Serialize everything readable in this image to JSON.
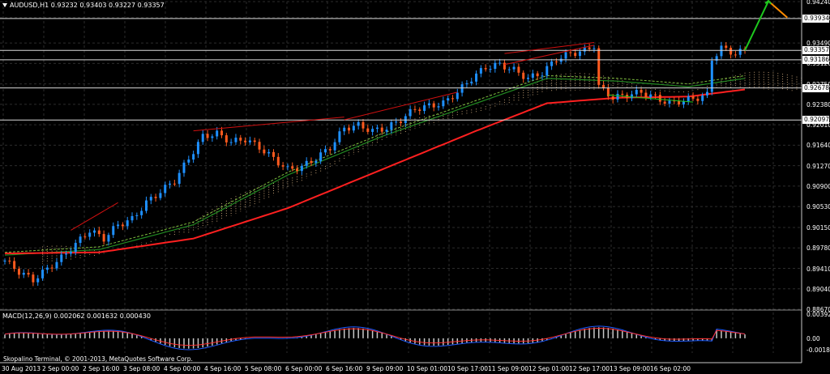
{
  "header": {
    "symbol_line": "AUDUSD,H1  0.93232 0.93403 0.93227 0.93357"
  },
  "macd_header": "MACD(12,26,9) 0.002062 0.001632 0.000430",
  "footer": {
    "copyright": "Skopalino Terminal, © 2001-2013, MetaQuotes Software Corp."
  },
  "colors": {
    "bull": "#1e90ff",
    "bear": "#ff5a1e",
    "ma_fast": "#ff2020",
    "ma_mid": "#228b22",
    "ichimoku": "#deb887",
    "grid": "#2c2c2c",
    "macd_line": "#1e5aff",
    "signal": "#ff3030"
  },
  "chart_data": {
    "type": "candlestick",
    "symbol": "AUDUSD",
    "timeframe": "H1",
    "ohlc_current": {
      "open": 0.93232,
      "high": 0.93403,
      "low": 0.93227,
      "close": 0.93357
    },
    "price_axis": {
      "ticks": [
        "0.94240",
        "0.93950",
        "0.93490",
        "0.93120",
        "0.92750",
        "0.92380",
        "0.92010",
        "0.91640",
        "0.91270",
        "0.90900",
        "0.90530",
        "0.90150",
        "0.89780",
        "0.89410",
        "0.89040",
        "0.88670"
      ],
      "horizontal_levels": [
        "0.93934",
        "0.93357",
        "0.93186",
        "0.92678",
        "0.92097"
      ]
    },
    "time_axis": [
      "30 Aug 2013",
      "2 Sep 00:00",
      "2 Sep 16:00",
      "3 Sep 08:00",
      "4 Sep 00:00",
      "4 Sep 16:00",
      "5 Sep 08:00",
      "6 Sep 00:00",
      "6 Sep 16:00",
      "9 Sep 09:00",
      "10 Sep 01:00",
      "10 Sep 17:00",
      "11 Sep 09:00",
      "12 Sep 01:00",
      "12 Sep 17:00",
      "13 Sep 09:00",
      "16 Sep 02:00"
    ],
    "close_path": [
      [
        0,
        0.8955
      ],
      [
        3,
        0.8935
      ],
      [
        6,
        0.892
      ],
      [
        9,
        0.894
      ],
      [
        12,
        0.896
      ],
      [
        15,
        0.8985
      ],
      [
        18,
        0.901
      ],
      [
        21,
        0.8995
      ],
      [
        24,
        0.902
      ],
      [
        27,
        0.903
      ],
      [
        30,
        0.906
      ],
      [
        33,
        0.908
      ],
      [
        36,
        0.91
      ],
      [
        39,
        0.914
      ],
      [
        42,
        0.918
      ],
      [
        45,
        0.9185
      ],
      [
        48,
        0.917
      ],
      [
        51,
        0.9175
      ],
      [
        54,
        0.916
      ],
      [
        57,
        0.914
      ],
      [
        60,
        0.912
      ],
      [
        63,
        0.9125
      ],
      [
        66,
        0.914
      ],
      [
        69,
        0.916
      ],
      [
        72,
        0.9195
      ],
      [
        75,
        0.92
      ],
      [
        78,
        0.919
      ],
      [
        81,
        0.9195
      ],
      [
        84,
        0.921
      ],
      [
        87,
        0.923
      ],
      [
        90,
        0.9235
      ],
      [
        93,
        0.924
      ],
      [
        96,
        0.926
      ],
      [
        99,
        0.9285
      ],
      [
        102,
        0.9305
      ],
      [
        105,
        0.931
      ],
      [
        108,
        0.93
      ],
      [
        111,
        0.9285
      ],
      [
        114,
        0.9295
      ],
      [
        117,
        0.932
      ],
      [
        120,
        0.933
      ],
      [
        123,
        0.9335
      ],
      [
        125,
        0.9345
      ],
      [
        126,
        0.927
      ],
      [
        129,
        0.925
      ],
      [
        132,
        0.9255
      ],
      [
        135,
        0.926
      ],
      [
        138,
        0.925
      ],
      [
        141,
        0.924
      ],
      [
        144,
        0.9245
      ],
      [
        147,
        0.925
      ],
      [
        149,
        0.9255
      ],
      [
        150,
        0.932
      ],
      [
        152,
        0.934
      ],
      [
        155,
        0.933
      ],
      [
        157,
        0.93357
      ]
    ],
    "ma_fast_path": [
      [
        0,
        0.8968
      ],
      [
        20,
        0.897
      ],
      [
        40,
        0.8995
      ],
      [
        60,
        0.905
      ],
      [
        80,
        0.912
      ],
      [
        100,
        0.919
      ],
      [
        115,
        0.924
      ],
      [
        130,
        0.925
      ],
      [
        145,
        0.9252
      ],
      [
        157,
        0.9265
      ]
    ],
    "ma_mid_path": [
      [
        0,
        0.8965
      ],
      [
        20,
        0.8975
      ],
      [
        40,
        0.902
      ],
      [
        60,
        0.911
      ],
      [
        80,
        0.918
      ],
      [
        100,
        0.924
      ],
      [
        115,
        0.9285
      ],
      [
        130,
        0.928
      ],
      [
        145,
        0.927
      ],
      [
        157,
        0.9285
      ]
    ],
    "macd_axis": {
      "ticks": [
        "0.003927",
        "0.00",
        "-0.001855"
      ]
    },
    "arrow_annotations": [
      {
        "color": "#1ec81e",
        "from": [
          157,
          0.93357
        ],
        "to": [
          162,
          0.9425
        ]
      },
      {
        "color": "#ff8c00",
        "from": [
          162,
          0.9425
        ],
        "to": [
          166,
          0.9395
        ]
      }
    ]
  }
}
